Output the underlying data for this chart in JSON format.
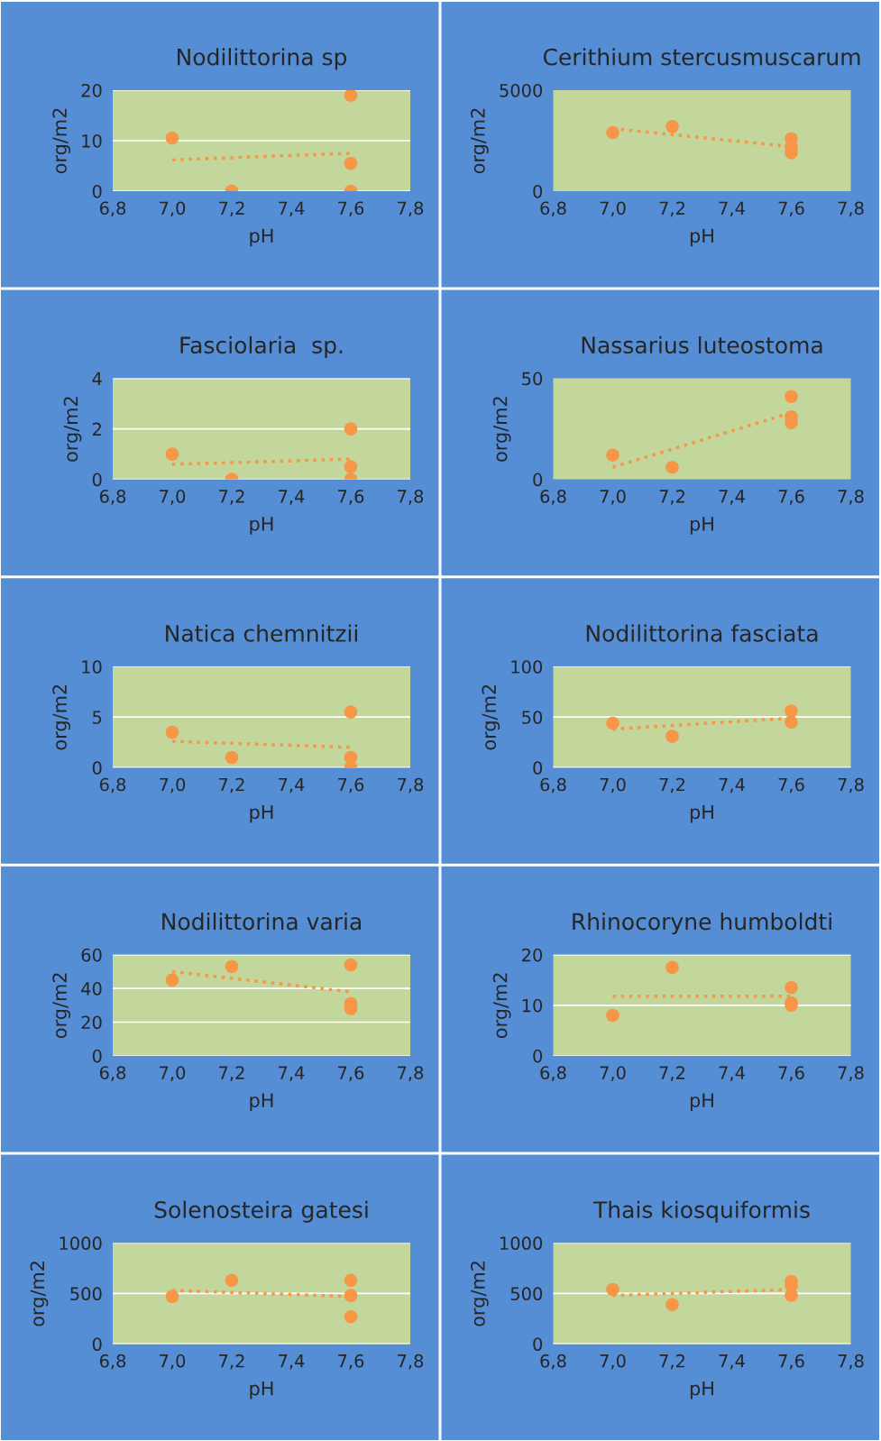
{
  "chart_data": [
    {
      "type": "scatter",
      "title": "Nodilittorina sp",
      "xlabel": "pH",
      "ylabel": "org/m2",
      "xlim": [
        6.8,
        7.8
      ],
      "xticks": [
        {
          "value": 6.8,
          "label": "6,8"
        },
        {
          "value": 7.0,
          "label": "7,0"
        },
        {
          "value": 7.2,
          "label": "7,2"
        },
        {
          "value": 7.4,
          "label": "7,4"
        },
        {
          "value": 7.6,
          "label": "7,6"
        },
        {
          "value": 7.8,
          "label": "7,8"
        }
      ],
      "ylim": [
        0,
        20
      ],
      "yticks": [
        0,
        10,
        20
      ],
      "grid": "y",
      "legend": false,
      "series": [
        {
          "type": "scatter",
          "color": "#f79646",
          "marker": "circle",
          "x": [
            7.0,
            7.2,
            7.6,
            7.6,
            7.6
          ],
          "values": [
            10.5,
            0,
            19,
            5.5,
            0
          ]
        },
        {
          "type": "line",
          "color": "#f79646",
          "line_style": "dotted",
          "marker": "none",
          "x": [
            7.0,
            7.6
          ],
          "values": [
            6.2,
            7.5
          ]
        }
      ]
    },
    {
      "type": "scatter",
      "title": "Cerithium stercusmuscarum",
      "xlabel": "pH",
      "ylabel": "org/m2",
      "xlim": [
        6.8,
        7.8
      ],
      "xticks": [
        {
          "value": 6.8,
          "label": "6,8"
        },
        {
          "value": 7.0,
          "label": "7,0"
        },
        {
          "value": 7.2,
          "label": "7,2"
        },
        {
          "value": 7.4,
          "label": "7,4"
        },
        {
          "value": 7.6,
          "label": "7,6"
        },
        {
          "value": 7.8,
          "label": "7,8"
        }
      ],
      "ylim": [
        0,
        5000
      ],
      "yticks": [
        0,
        5000
      ],
      "grid": false,
      "legend": false,
      "series": [
        {
          "type": "scatter",
          "color": "#f79646",
          "marker": "circle",
          "x": [
            7.0,
            7.2,
            7.6,
            7.6,
            7.6
          ],
          "values": [
            2900,
            3200,
            2600,
            2200,
            1900
          ]
        },
        {
          "type": "line",
          "color": "#f79646",
          "line_style": "dotted",
          "marker": "none",
          "x": [
            7.0,
            7.6
          ],
          "values": [
            3100,
            2200
          ]
        }
      ]
    },
    {
      "type": "scatter",
      "title": "Fasciolaria  sp.",
      "xlabel": "pH",
      "ylabel": "org/m2",
      "xlim": [
        6.8,
        7.8
      ],
      "xticks": [
        {
          "value": 6.8,
          "label": "6,8"
        },
        {
          "value": 7.0,
          "label": "7,0"
        },
        {
          "value": 7.2,
          "label": "7,2"
        },
        {
          "value": 7.4,
          "label": "7,4"
        },
        {
          "value": 7.6,
          "label": "7,6"
        },
        {
          "value": 7.8,
          "label": "7,8"
        }
      ],
      "ylim": [
        0,
        4
      ],
      "yticks": [
        0,
        2,
        4
      ],
      "grid": "y",
      "legend": false,
      "series": [
        {
          "type": "scatter",
          "color": "#f79646",
          "marker": "circle",
          "x": [
            7.0,
            7.2,
            7.6,
            7.6,
            7.6
          ],
          "values": [
            1,
            0,
            2,
            0.5,
            0
          ]
        },
        {
          "type": "line",
          "color": "#f79646",
          "line_style": "dotted",
          "marker": "none",
          "x": [
            7.0,
            7.6
          ],
          "values": [
            0.6,
            0.8
          ]
        }
      ]
    },
    {
      "type": "scatter",
      "title": "Nassarius luteostoma",
      "xlabel": "pH",
      "ylabel": "org/m2",
      "xlim": [
        6.8,
        7.8
      ],
      "xticks": [
        {
          "value": 6.8,
          "label": "6,8"
        },
        {
          "value": 7.0,
          "label": "7,0"
        },
        {
          "value": 7.2,
          "label": "7,2"
        },
        {
          "value": 7.4,
          "label": "7,4"
        },
        {
          "value": 7.6,
          "label": "7,6"
        },
        {
          "value": 7.8,
          "label": "7,8"
        }
      ],
      "ylim": [
        0,
        50
      ],
      "yticks": [
        0,
        50
      ],
      "grid": false,
      "legend": false,
      "series": [
        {
          "type": "scatter",
          "color": "#f79646",
          "marker": "circle",
          "x": [
            7.0,
            7.2,
            7.6,
            7.6,
            7.6
          ],
          "values": [
            12,
            6,
            41,
            31,
            28
          ]
        },
        {
          "type": "line",
          "color": "#f79646",
          "line_style": "dotted",
          "marker": "none",
          "x": [
            7.0,
            7.6
          ],
          "values": [
            6,
            33
          ]
        }
      ]
    },
    {
      "type": "scatter",
      "title": "Natica chemnitzii",
      "xlabel": "pH",
      "ylabel": "org/m2",
      "xlim": [
        6.8,
        7.8
      ],
      "xticks": [
        {
          "value": 6.8,
          "label": "6,8"
        },
        {
          "value": 7.0,
          "label": "7,0"
        },
        {
          "value": 7.2,
          "label": "7,2"
        },
        {
          "value": 7.4,
          "label": "7,4"
        },
        {
          "value": 7.6,
          "label": "7,6"
        },
        {
          "value": 7.8,
          "label": "7,8"
        }
      ],
      "ylim": [
        0,
        10
      ],
      "yticks": [
        0,
        5,
        10
      ],
      "grid": "y",
      "legend": false,
      "series": [
        {
          "type": "scatter",
          "color": "#f79646",
          "marker": "circle",
          "x": [
            7.0,
            7.2,
            7.6,
            7.6,
            7.6
          ],
          "values": [
            3.5,
            1,
            5.5,
            1,
            0
          ]
        },
        {
          "type": "line",
          "color": "#f79646",
          "line_style": "dotted",
          "marker": "none",
          "x": [
            7.0,
            7.6
          ],
          "values": [
            2.6,
            2.0
          ]
        }
      ]
    },
    {
      "type": "scatter",
      "title": "Nodilittorina fasciata",
      "xlabel": "pH",
      "ylabel": "org/m2",
      "xlim": [
        6.8,
        7.8
      ],
      "xticks": [
        {
          "value": 6.8,
          "label": "6,8"
        },
        {
          "value": 7.0,
          "label": "7,0"
        },
        {
          "value": 7.2,
          "label": "7,2"
        },
        {
          "value": 7.4,
          "label": "7,4"
        },
        {
          "value": 7.6,
          "label": "7,6"
        },
        {
          "value": 7.8,
          "label": "7,8"
        }
      ],
      "ylim": [
        0,
        100
      ],
      "yticks": [
        0,
        50,
        100
      ],
      "grid": "y",
      "legend": false,
      "series": [
        {
          "type": "scatter",
          "color": "#f79646",
          "marker": "circle",
          "x": [
            7.0,
            7.2,
            7.6,
            7.6
          ],
          "values": [
            44,
            31,
            56,
            45
          ]
        },
        {
          "type": "line",
          "color": "#f79646",
          "line_style": "dotted",
          "marker": "none",
          "x": [
            7.0,
            7.6
          ],
          "values": [
            38,
            49
          ]
        }
      ]
    },
    {
      "type": "scatter",
      "title": "Nodilittorina varia",
      "xlabel": "pH",
      "ylabel": "org/m2",
      "xlim": [
        6.8,
        7.8
      ],
      "xticks": [
        {
          "value": 6.8,
          "label": "6,8"
        },
        {
          "value": 7.0,
          "label": "7,0"
        },
        {
          "value": 7.2,
          "label": "7,2"
        },
        {
          "value": 7.4,
          "label": "7,4"
        },
        {
          "value": 7.6,
          "label": "7,6"
        },
        {
          "value": 7.8,
          "label": "7,8"
        }
      ],
      "ylim": [
        0,
        60
      ],
      "yticks": [
        0,
        20,
        40,
        60
      ],
      "grid": "y",
      "legend": false,
      "series": [
        {
          "type": "scatter",
          "color": "#f79646",
          "marker": "circle",
          "x": [
            7.0,
            7.2,
            7.6,
            7.6,
            7.6
          ],
          "values": [
            45,
            53,
            54,
            31,
            28
          ]
        },
        {
          "type": "line",
          "color": "#f79646",
          "line_style": "dotted",
          "marker": "none",
          "x": [
            7.0,
            7.6
          ],
          "values": [
            50,
            38
          ]
        }
      ]
    },
    {
      "type": "scatter",
      "title": "Rhinocoryne humboldti",
      "xlabel": "pH",
      "ylabel": "org/m2",
      "xlim": [
        6.8,
        7.8
      ],
      "xticks": [
        {
          "value": 6.8,
          "label": "6,8"
        },
        {
          "value": 7.0,
          "label": "7,0"
        },
        {
          "value": 7.2,
          "label": "7,2"
        },
        {
          "value": 7.4,
          "label": "7,4"
        },
        {
          "value": 7.6,
          "label": "7,6"
        },
        {
          "value": 7.8,
          "label": "7,8"
        }
      ],
      "ylim": [
        0,
        20
      ],
      "yticks": [
        0,
        10,
        20
      ],
      "grid": "y",
      "legend": false,
      "series": [
        {
          "type": "scatter",
          "color": "#f79646",
          "marker": "circle",
          "x": [
            7.0,
            7.2,
            7.6,
            7.6,
            7.6
          ],
          "values": [
            8,
            17.5,
            13.5,
            10.5,
            10
          ]
        },
        {
          "type": "line",
          "color": "#f79646",
          "line_style": "dotted",
          "marker": "none",
          "x": [
            7.0,
            7.6
          ],
          "values": [
            11.8,
            11.8
          ]
        }
      ]
    },
    {
      "type": "scatter",
      "title": "Solenosteira gatesi",
      "xlabel": "pH",
      "ylabel": "org/m2",
      "xlim": [
        6.8,
        7.8
      ],
      "xticks": [
        {
          "value": 6.8,
          "label": "6,8"
        },
        {
          "value": 7.0,
          "label": "7,0"
        },
        {
          "value": 7.2,
          "label": "7,2"
        },
        {
          "value": 7.4,
          "label": "7,4"
        },
        {
          "value": 7.6,
          "label": "7,6"
        },
        {
          "value": 7.8,
          "label": "7,8"
        }
      ],
      "ylim": [
        0,
        1000
      ],
      "yticks": [
        0,
        500,
        1000
      ],
      "grid": "y",
      "legend": false,
      "series": [
        {
          "type": "scatter",
          "color": "#f79646",
          "marker": "circle",
          "x": [
            7.0,
            7.2,
            7.6,
            7.6,
            7.6
          ],
          "values": [
            470,
            630,
            630,
            480,
            270
          ]
        },
        {
          "type": "line",
          "color": "#f79646",
          "line_style": "dotted",
          "marker": "none",
          "x": [
            7.0,
            7.6
          ],
          "values": [
            530,
            470
          ]
        }
      ]
    },
    {
      "type": "scatter",
      "title": "Thais kiosquiformis",
      "xlabel": "pH",
      "ylabel": "org/m2",
      "xlim": [
        6.8,
        7.8
      ],
      "xticks": [
        {
          "value": 6.8,
          "label": "6,8"
        },
        {
          "value": 7.0,
          "label": "7,0"
        },
        {
          "value": 7.2,
          "label": "7,2"
        },
        {
          "value": 7.4,
          "label": "7,4"
        },
        {
          "value": 7.6,
          "label": "7,6"
        },
        {
          "value": 7.8,
          "label": "7,8"
        }
      ],
      "ylim": [
        0,
        1000
      ],
      "yticks": [
        0,
        500,
        1000
      ],
      "grid": "y",
      "legend": false,
      "series": [
        {
          "type": "scatter",
          "color": "#f79646",
          "marker": "circle",
          "x": [
            7.0,
            7.2,
            7.6,
            7.6,
            7.6
          ],
          "values": [
            540,
            390,
            620,
            580,
            480
          ]
        },
        {
          "type": "line",
          "color": "#f79646",
          "line_style": "dotted",
          "marker": "none",
          "x": [
            7.0,
            7.6
          ],
          "values": [
            480,
            540
          ]
        }
      ]
    }
  ]
}
